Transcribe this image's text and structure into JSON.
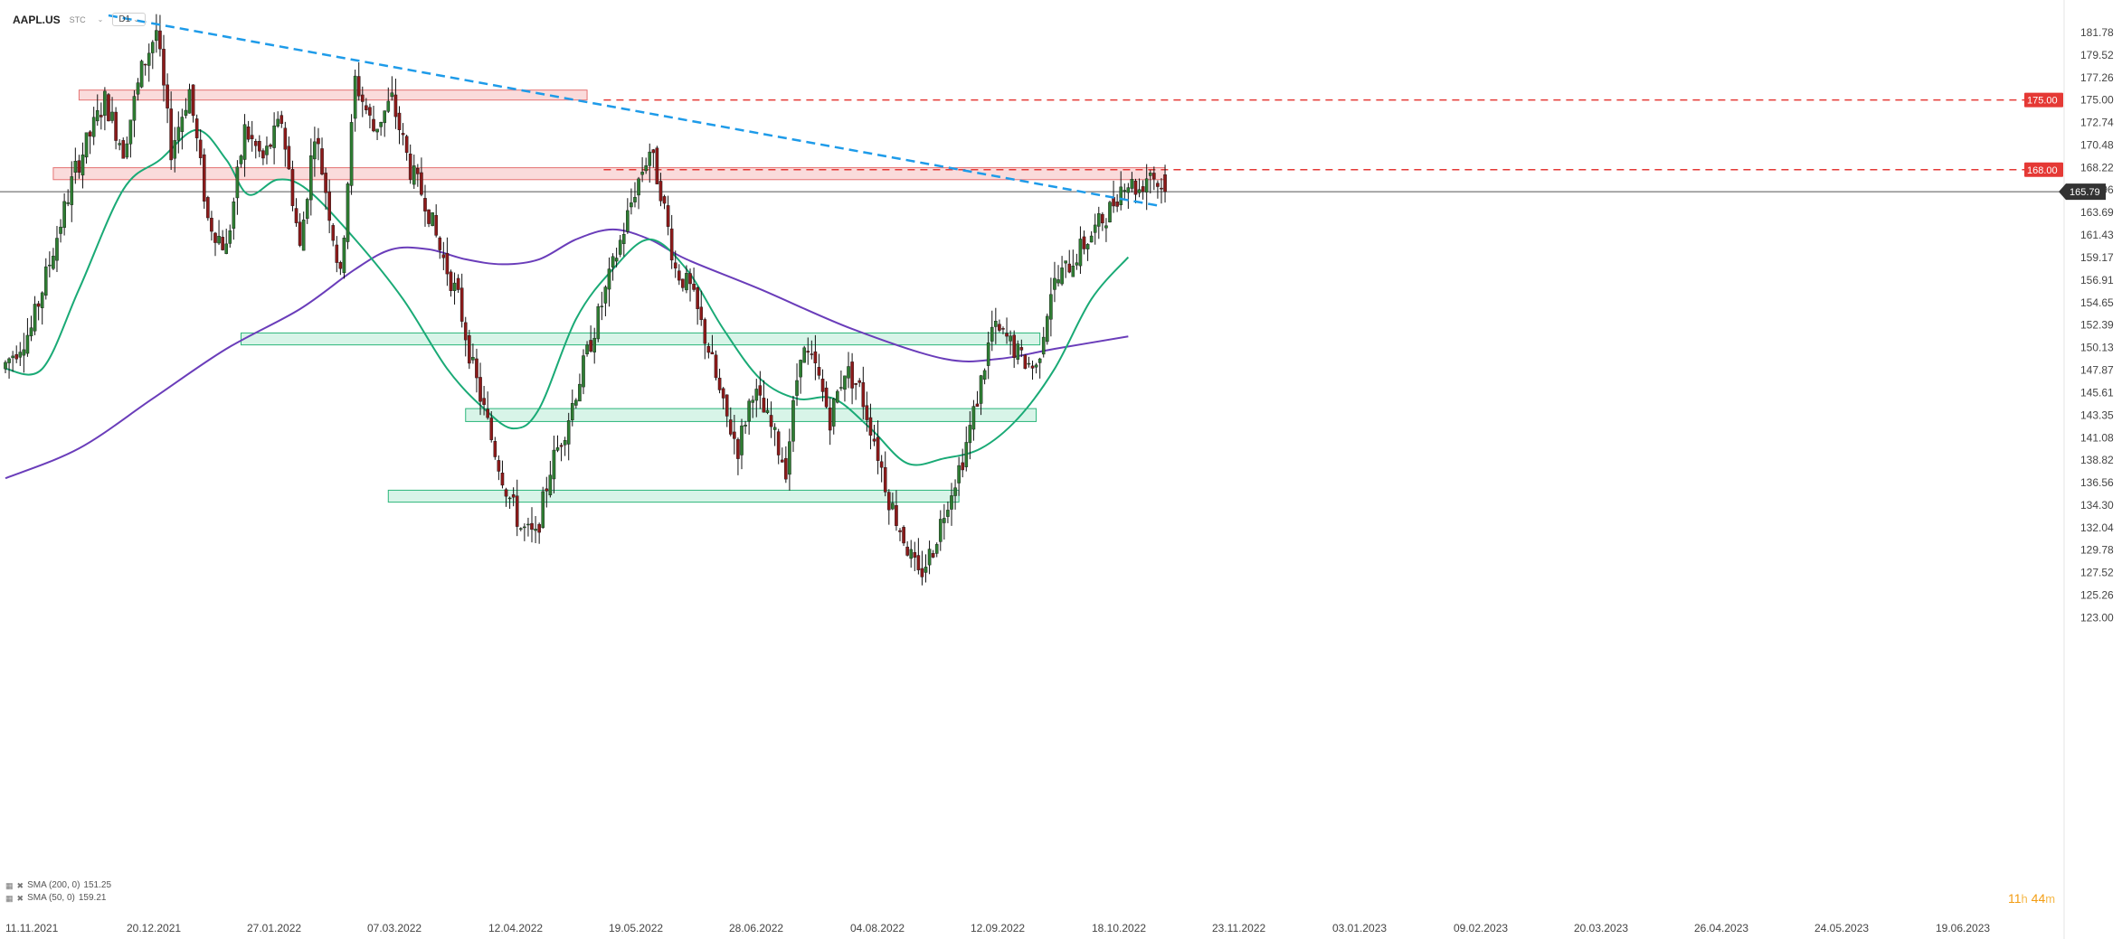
{
  "header": {
    "symbol": "AAPL.US",
    "exchange": "STC",
    "timeframe": "D1"
  },
  "legend": [
    {
      "label": "SMA (200, 0)",
      "value": "151.25"
    },
    {
      "label": "SMA (50, 0)",
      "value": "159.21"
    }
  ],
  "countdown": {
    "hours": "11",
    "h": "h",
    "minutes": "44",
    "m": "m"
  },
  "chart_data": {
    "type": "line",
    "instrument": "AAPL.US",
    "timeframe": "D1",
    "ylim": [
      123.0,
      183.0
    ],
    "y_ticks": [
      "181.78",
      "179.52",
      "177.26",
      "175.00",
      "172.74",
      "170.48",
      "168.22",
      "165.96",
      "163.69",
      "161.43",
      "159.17",
      "156.91",
      "154.65",
      "152.39",
      "150.13",
      "147.87",
      "145.61",
      "143.35",
      "141.08",
      "138.82",
      "136.56",
      "134.30",
      "132.04",
      "129.78",
      "127.52",
      "125.26",
      "123.00"
    ],
    "x_ticks": [
      "11.11.2021",
      "20.12.2021",
      "27.01.2022",
      "07.03.2022",
      "12.04.2022",
      "19.05.2022",
      "28.06.2022",
      "04.08.2022",
      "12.09.2022",
      "18.10.2022",
      "23.11.2022",
      "03.01.2023",
      "09.02.2023",
      "20.03.2023",
      "26.04.2023",
      "24.05.2023",
      "19.06.2023"
    ],
    "price_path": [
      [
        0,
        148
      ],
      [
        8,
        152
      ],
      [
        14,
        160
      ],
      [
        20,
        168
      ],
      [
        28,
        175
      ],
      [
        33,
        170
      ],
      [
        38,
        178
      ],
      [
        42,
        182
      ],
      [
        46,
        170
      ],
      [
        51,
        176
      ],
      [
        56,
        163
      ],
      [
        61,
        160
      ],
      [
        66,
        172
      ],
      [
        71,
        169
      ],
      [
        76,
        173
      ],
      [
        81,
        160
      ],
      [
        85,
        172
      ],
      [
        88,
        166
      ],
      [
        92,
        157
      ],
      [
        96,
        177
      ],
      [
        101,
        172
      ],
      [
        106,
        175
      ],
      [
        111,
        168
      ],
      [
        115,
        165
      ],
      [
        119,
        160
      ],
      [
        124,
        155
      ],
      [
        128,
        148
      ],
      [
        133,
        141
      ],
      [
        137,
        136
      ],
      [
        141,
        132
      ],
      [
        145,
        131
      ],
      [
        149,
        138
      ],
      [
        153,
        142
      ],
      [
        157,
        147
      ],
      [
        161,
        152
      ],
      [
        165,
        157
      ],
      [
        169,
        162
      ],
      [
        172,
        166
      ],
      [
        176,
        170
      ],
      [
        179,
        166
      ],
      [
        183,
        158
      ],
      [
        187,
        156
      ],
      [
        192,
        150
      ],
      [
        196,
        144
      ],
      [
        200,
        140
      ],
      [
        204,
        146
      ],
      [
        209,
        142
      ],
      [
        213,
        138
      ],
      [
        217,
        150
      ],
      [
        221,
        148
      ],
      [
        225,
        143
      ],
      [
        229,
        148
      ],
      [
        233,
        146
      ],
      [
        237,
        141
      ],
      [
        241,
        135
      ],
      [
        245,
        131
      ],
      [
        249,
        127
      ],
      [
        253,
        130
      ],
      [
        257,
        135
      ],
      [
        261,
        139
      ],
      [
        265,
        145
      ],
      [
        269,
        152
      ],
      [
        273,
        151
      ],
      [
        277,
        149
      ],
      [
        281,
        148
      ],
      [
        285,
        156
      ],
      [
        289,
        158
      ],
      [
        293,
        160
      ],
      [
        297,
        162
      ],
      [
        301,
        164
      ],
      [
        305,
        167
      ],
      [
        309,
        166
      ],
      [
        312,
        168
      ],
      [
        315,
        166
      ]
    ],
    "last_candle": {
      "open": 167.5,
      "high": 168.5,
      "low": 164.7,
      "close": 165.79
    },
    "series": [
      {
        "name": "SMA (200, 0)",
        "last_value": 151.25,
        "color": "#6a3dba",
        "points": [
          [
            0,
            137
          ],
          [
            20,
            140
          ],
          [
            40,
            145
          ],
          [
            60,
            150
          ],
          [
            80,
            154
          ],
          [
            95,
            158
          ],
          [
            105,
            160
          ],
          [
            115,
            160
          ],
          [
            125,
            159
          ],
          [
            135,
            158.5
          ],
          [
            145,
            159
          ],
          [
            155,
            161
          ],
          [
            165,
            162
          ],
          [
            175,
            161
          ],
          [
            185,
            159
          ],
          [
            205,
            156
          ],
          [
            230,
            152
          ],
          [
            255,
            149
          ],
          [
            270,
            149
          ],
          [
            285,
            150
          ],
          [
            305,
            151.25
          ]
        ]
      },
      {
        "name": "SMA (50, 0)",
        "last_value": 159.21,
        "color": "#1aaa76",
        "points": [
          [
            0,
            148
          ],
          [
            10,
            148
          ],
          [
            20,
            156
          ],
          [
            32,
            166
          ],
          [
            42,
            169
          ],
          [
            52,
            172
          ],
          [
            60,
            169
          ],
          [
            66,
            165.5
          ],
          [
            74,
            167
          ],
          [
            82,
            166
          ],
          [
            95,
            161
          ],
          [
            108,
            155
          ],
          [
            120,
            148
          ],
          [
            130,
            144
          ],
          [
            138,
            142
          ],
          [
            145,
            144
          ],
          [
            155,
            153
          ],
          [
            165,
            158
          ],
          [
            175,
            161
          ],
          [
            185,
            158
          ],
          [
            195,
            152
          ],
          [
            205,
            147
          ],
          [
            215,
            145
          ],
          [
            225,
            145
          ],
          [
            235,
            142
          ],
          [
            245,
            138.5
          ],
          [
            255,
            139
          ],
          [
            265,
            140
          ],
          [
            275,
            143
          ],
          [
            285,
            148
          ],
          [
            295,
            155
          ],
          [
            305,
            159.21
          ]
        ]
      }
    ],
    "horizontal_levels": [
      {
        "value": 175.0,
        "label": "175.00",
        "color": "#e53935"
      },
      {
        "value": 168.0,
        "label": "168.00",
        "color": "#e53935"
      }
    ],
    "current_price": {
      "value": 165.79,
      "label": "165.79"
    },
    "trendline": {
      "from": [
        28,
        183.5
      ],
      "to": [
        313,
        164.4
      ],
      "color": "#1e9be9"
    },
    "resistance_zones": [
      {
        "x0": 20,
        "x1": 158,
        "y0": 175.0,
        "y1": 176.0
      },
      {
        "x0": 13,
        "x1": 315,
        "y0": 167.0,
        "y1": 168.2
      }
    ],
    "support_zones": [
      {
        "x0": 64,
        "x1": 281,
        "y0": 150.4,
        "y1": 151.6
      },
      {
        "x0": 125,
        "x1": 280,
        "y0": 142.7,
        "y1": 144.0
      },
      {
        "x0": 104,
        "x1": 259,
        "y0": 134.6,
        "y1": 135.8
      }
    ]
  }
}
